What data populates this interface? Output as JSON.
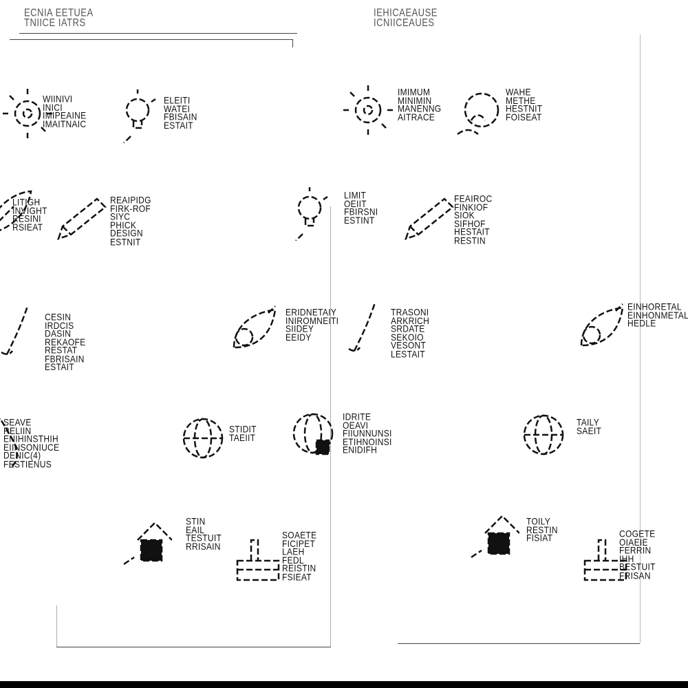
{
  "left_panel": {
    "title": "ECNIA EETUEA\nTNIICE IATRS",
    "items": [
      {
        "label": "WIINIVI\nINICI\nIMIPEAINE\nIMAITNAIC",
        "icon": "sun-gear-icon"
      },
      {
        "label": "ELEITI\nWATEI\nFBISAIN\nESTAIT",
        "icon": "bulb-icon"
      },
      {
        "label": "LITIGH\nINVIGHT\nRESINI\nRSIEAT",
        "icon": "leaf-icon"
      },
      {
        "label": "REAIPIDG\nFIRK-ROF\nSIYC\nPHICK\nDESIGN\nESTNIT",
        "icon": "pencil-icon"
      },
      {
        "label": "CESIN\nIRDCIS\nDASIN\nREKAOFE\nRESTAT\nFBRISAIN\nESTAIT",
        "icon": "brush-icon"
      },
      {
        "label": "ERIDNETAIY\nINIROMNEITI\nSIIDEY\nEEIDY",
        "icon": "leaf-arrow-icon"
      },
      {
        "label": "SEAVE\nRELIIN\nENIHINSTHIH\nEIINSONIUCE\nDENIC(4)\nFESTIENUS",
        "icon": "drop-icon"
      },
      {
        "label": "STIDIT\nTAEIIT",
        "icon": "globe-icon"
      },
      {
        "label": "STIN\nEAIL\nTESTUIT\nRRISAIN",
        "icon": "house-icon"
      },
      {
        "label": "SOAETE\nFICIPET\nLAEH\nFEDL\nREISTIN\nFSIEAT",
        "icon": "box-icon"
      }
    ]
  },
  "right_panel": {
    "title": "IEHICAEAUSE\nICNIICEAUES",
    "items": [
      {
        "label": "IMIMUM\nMINIMIN\nMANENNG\nAITRACE",
        "icon": "sun-gear-icon"
      },
      {
        "label": "WAHE\nMETHE\nHESTNIT\nFOISEAT",
        "icon": "wave-icon"
      },
      {
        "label": "LIMIT\nOEIIT\nFBIRSNI\nESTINT",
        "icon": "bulb-icon"
      },
      {
        "label": "FEAIROC\nFINKIOF\nSIOK\nSIFHOF\nHESTAIT\nRESTIN",
        "icon": "pencil-icon"
      },
      {
        "label": "TRASONI\nARKRICH\nSRDATE\nSEKOIO\nVESONT\nLESTAIT",
        "icon": "brush-icon"
      },
      {
        "label": "EINHORETAL\nEINHONMETAL\nHEDLE",
        "icon": "leaf-arrow-icon"
      },
      {
        "label": "IDRITE\nOEAVI\nFIIUNNUNSI\nETIHNOINSI\nENIDIFH",
        "icon": "globe-plug-icon"
      },
      {
        "label": "TAILY\nSAEIT",
        "icon": "globe-icon"
      },
      {
        "label": "TOILY\nRESTIN\nFISIAT",
        "icon": "house-icon"
      },
      {
        "label": "COGETE\nOIAEIE\nFERRIN\nIHH\nBESTUIT\nFRISAN",
        "icon": "box-icon"
      }
    ]
  }
}
